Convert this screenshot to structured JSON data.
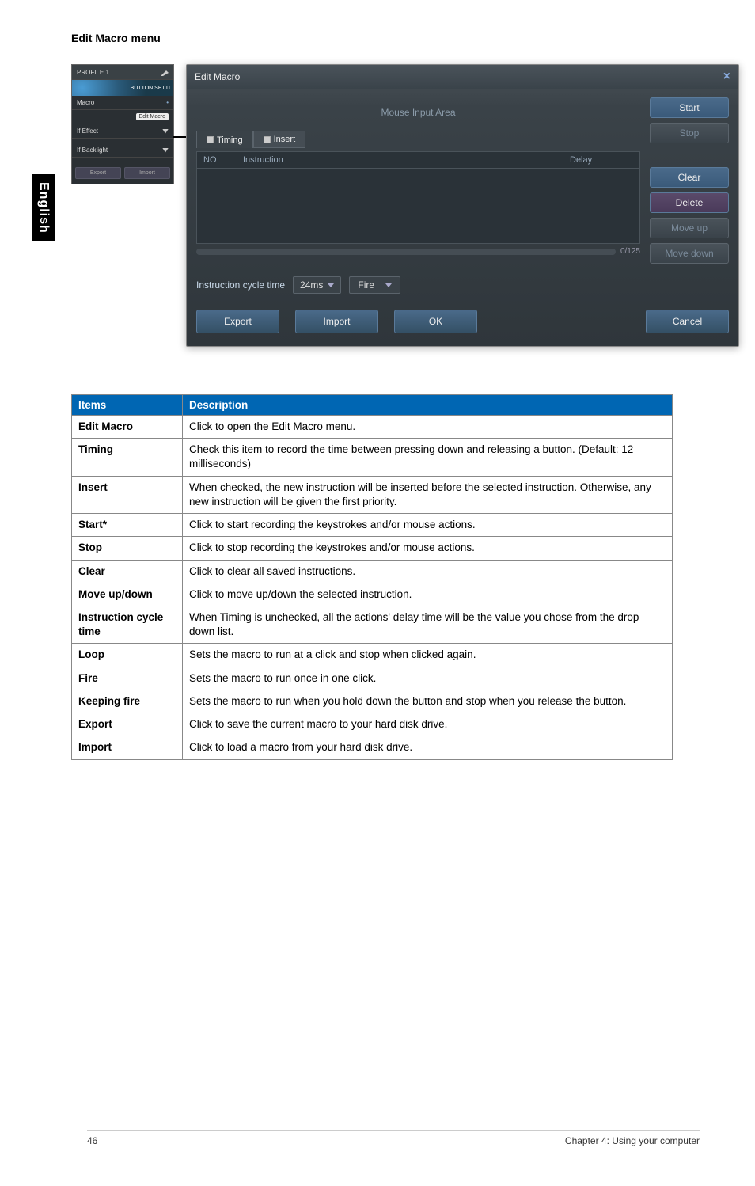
{
  "sideTab": "English",
  "sectionTitle": "Edit Macro menu",
  "miniPanel": {
    "row1": "PROFILE 1",
    "fanLabel": "BUTTON SETTI",
    "dotsLabel": "Macro",
    "badgeLabel": "Edit Macro",
    "effectLabel": "If Effect",
    "backlightLabel": "If Backlight",
    "btn1": "Export",
    "btn2": "Import"
  },
  "macroWindow": {
    "title": "Edit Macro",
    "closeGlyph": "×",
    "mouseArea": "Mouse Input Area",
    "tabs": {
      "timing": "Timing",
      "insert": "Insert"
    },
    "columns": {
      "no": "NO",
      "inst": "Instruction",
      "delay": "Delay"
    },
    "counter": "0/125",
    "cycleLabel": "Instruction cycle time",
    "cycleValue": "24ms",
    "modeValue": "Fire",
    "sideButtons": {
      "start": "Start",
      "stop": "Stop",
      "clear": "Clear",
      "delete": "Delete",
      "moveUp": "Move up",
      "moveDown": "Move down"
    },
    "bottomButtons": {
      "export": "Export",
      "import": "Import",
      "ok": "OK",
      "cancel": "Cancel"
    }
  },
  "tableHeaders": {
    "items": "Items",
    "description": "Description"
  },
  "tableRows": [
    {
      "item": "Edit Macro",
      "desc": "Click to open the Edit Macro menu."
    },
    {
      "item": "Timing",
      "desc": "Check this item to record the time between pressing down and releasing a button. (Default: 12 milliseconds)"
    },
    {
      "item": "Insert",
      "desc": "When checked, the new instruction will be inserted before the selected instruction. Otherwise, any new instruction will be given the first priority."
    },
    {
      "item": "Start*",
      "desc": "Click to start recording the keystrokes and/or mouse actions."
    },
    {
      "item": "Stop",
      "desc": "Click to stop recording the keystrokes and/or mouse actions."
    },
    {
      "item": "Clear",
      "desc": "Click to clear all saved instructions."
    },
    {
      "item": "Move up/down",
      "desc": "Click to move up/down the selected instruction."
    },
    {
      "item": "Instruction cycle time",
      "desc": "When Timing is unchecked, all the actions' delay time will be the value you chose from the drop down list."
    },
    {
      "item": "Loop",
      "desc": "Sets the macro to run at a click and stop when clicked again."
    },
    {
      "item": "Fire",
      "desc": "Sets the macro to run once in one click."
    },
    {
      "item": "Keeping fire",
      "desc": "Sets the macro to run when you hold down the button and stop when you release the button."
    },
    {
      "item": "Export",
      "desc": "Click to save the current macro to your hard disk drive."
    },
    {
      "item": "Import",
      "desc": "Click to load a macro from your hard disk drive."
    }
  ],
  "footer": {
    "page": "46",
    "chapter": "Chapter 4: Using your computer"
  }
}
